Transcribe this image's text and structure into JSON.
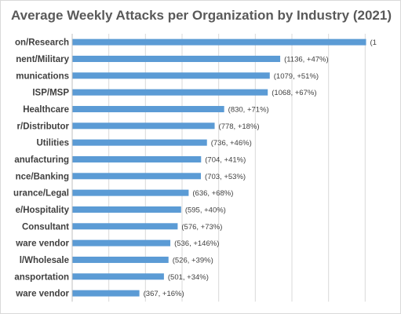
{
  "chart_data": {
    "type": "bar",
    "orientation": "horizontal",
    "title": "Average Weekly Attacks per Organization by Industry (2021)",
    "categories": [
      "on/Research",
      "nent/Military",
      "munications",
      "ISP/MSP",
      "Healthcare",
      "r/Distributor",
      "Utilities",
      "anufacturing",
      "nce/Banking",
      "urance/Legal",
      "e/Hospitality",
      "Consultant",
      "ware vendor",
      "l/Wholesale",
      "ansportation",
      "ware vendor"
    ],
    "values": [
      1605,
      1136,
      1079,
      1068,
      830,
      778,
      736,
      704,
      703,
      636,
      595,
      576,
      536,
      526,
      501,
      367
    ],
    "data_labels": [
      "(1",
      "(1136, +47%)",
      "(1079, +51%)",
      "(1068, +67%)",
      "(830, +71%)",
      "(778, +18%)",
      "(736, +46%)",
      "(704, +41%)",
      "(703, +53%)",
      "(636, +68%)",
      "(595, +40%)",
      "(576, +73%)",
      "(536, +146%)",
      "(526, +39%)",
      "(501, +34%)",
      "(367, +16%)"
    ],
    "xlim": [
      0,
      1800
    ],
    "grid": true,
    "legend": "none",
    "bar_color": "#5b9bd5",
    "gridline_color": "#d9d9d9",
    "text_color": "#404040"
  }
}
